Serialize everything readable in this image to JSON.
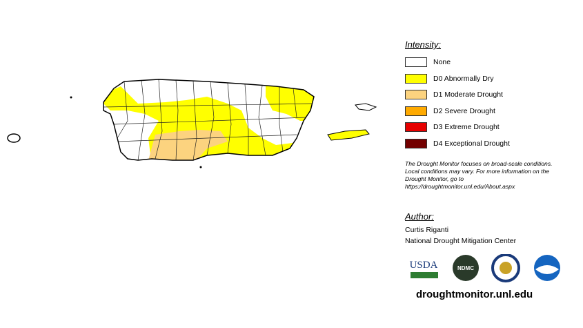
{
  "legend": {
    "title": "Intensity:",
    "items": [
      {
        "label": "None",
        "color": "#ffffff"
      },
      {
        "label": "D0 Abnormally Dry",
        "color": "#ffff00"
      },
      {
        "label": "D1 Moderate Drought",
        "color": "#fcd37f"
      },
      {
        "label": "D2 Severe Drought",
        "color": "#ffaa00"
      },
      {
        "label": "D3 Extreme Drought",
        "color": "#e60000"
      },
      {
        "label": "D4 Exceptional Drought",
        "color": "#730000"
      }
    ]
  },
  "note": "The Drought Monitor focuses on broad-scale conditions. Local conditions may vary. For more information on the Drought Monitor, go to https://droughtmonitor.unl.edu/About.aspx",
  "author": {
    "title": "Author:",
    "lines": [
      "Curtis Riganti",
      "National Drought Mitigation Center"
    ]
  },
  "logos": [
    "USDA",
    "NDMC"
  ],
  "url": "droughtmonitor.unl.edu"
}
